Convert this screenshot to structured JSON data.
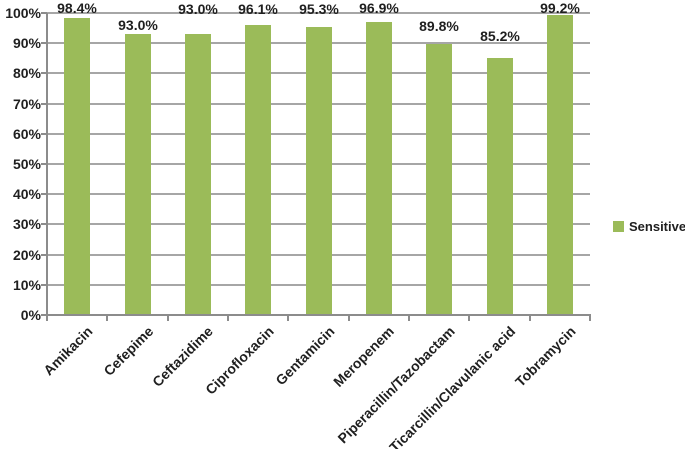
{
  "chart_data": {
    "type": "bar",
    "title": "",
    "xlabel": "",
    "ylabel": "",
    "categories": [
      "Amikacin",
      "Cefepime",
      "Ceftazidime",
      "Ciprofloxacin",
      "Gentamicin",
      "Meropenem",
      "Piperacillin/Tazobactam",
      "Ticarcillin/Clavulanic acid",
      "Tobramycin"
    ],
    "series": [
      {
        "name": "Sensitive",
        "values": [
          98.4,
          93.0,
          93.0,
          96.1,
          95.3,
          96.9,
          89.8,
          85.2,
          99.2
        ]
      }
    ],
    "data_labels": [
      "98.4%",
      "93.0%",
      "93.0%",
      "96.1%",
      "95.3%",
      "96.9%",
      "89.8%",
      "85.2%",
      "99.2%"
    ],
    "y_axis": {
      "min": 0,
      "max": 100,
      "step": 10,
      "ticks": [
        "0%",
        "10%",
        "20%",
        "30%",
        "40%",
        "50%",
        "60%",
        "70%",
        "80%",
        "90%",
        "100%"
      ]
    },
    "ylim": [
      0,
      100
    ],
    "grid": true,
    "legend": {
      "position": "right",
      "entries": [
        {
          "label": "Sensitive",
          "color": "#9BBB59"
        }
      ]
    },
    "colors": {
      "bar": "#9BBB59",
      "gridline": "#A6A6A6",
      "axis": "#8C8C8C",
      "text": "#1F1F1F",
      "background": "#FFFFFF"
    }
  }
}
